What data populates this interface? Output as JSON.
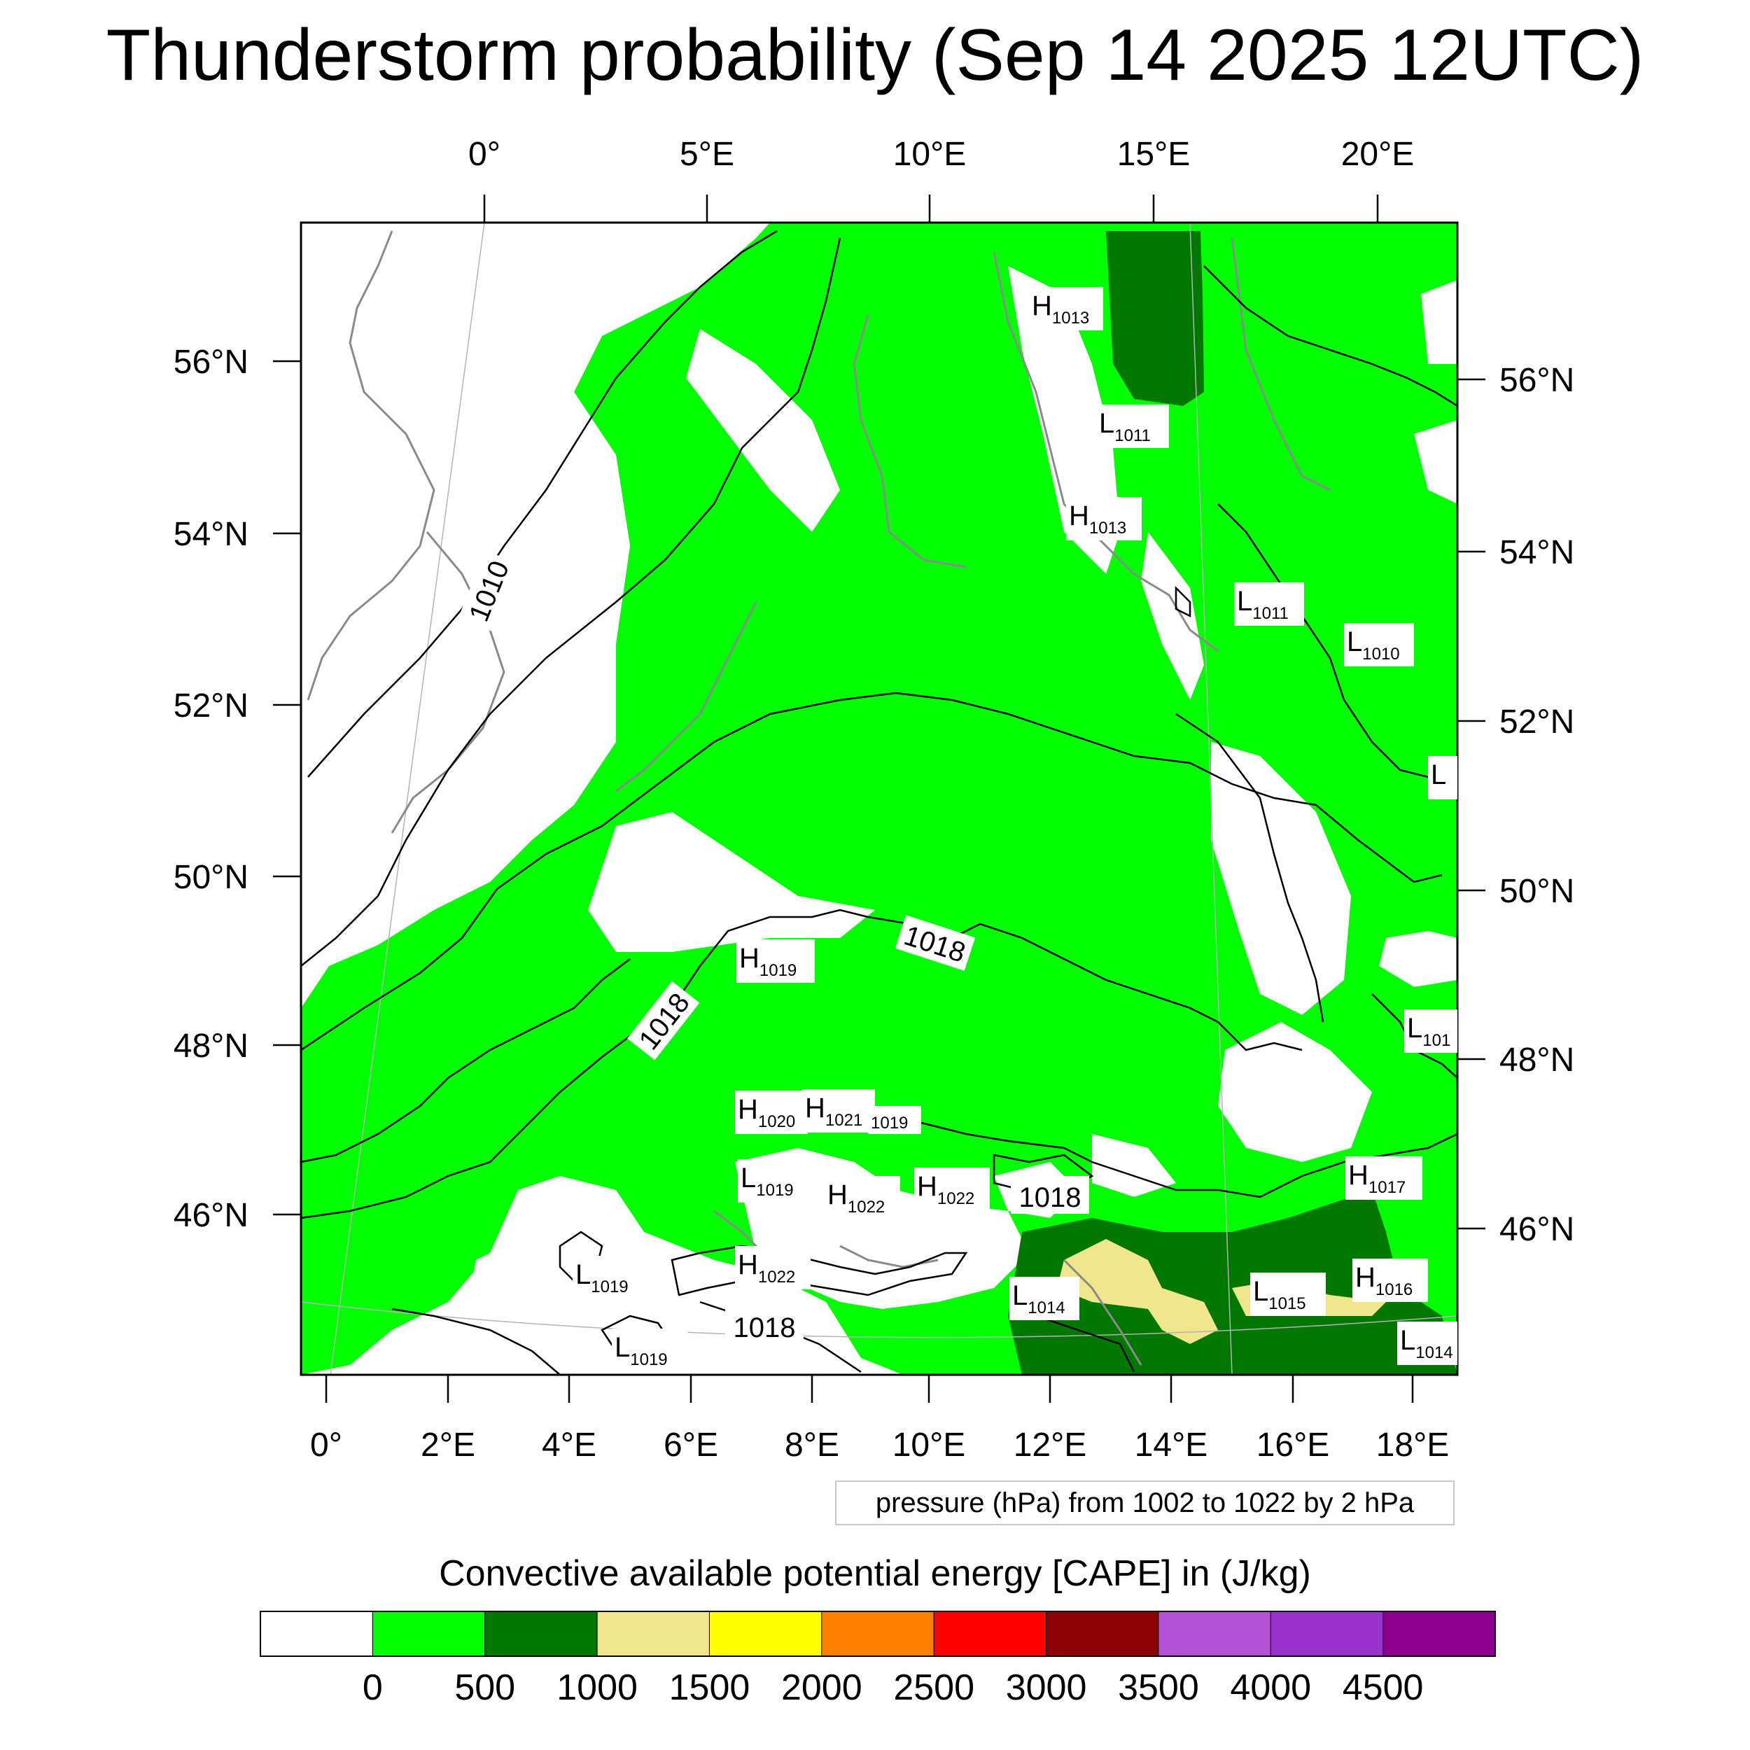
{
  "title": "Thunderstorm probability (Sep 14 2025 12UTC)",
  "top_lon_labels": [
    "0°",
    "5°E",
    "10°E",
    "15°E",
    "20°E"
  ],
  "bottom_lon_labels": [
    "0°",
    "2°E",
    "4°E",
    "6°E",
    "8°E",
    "10°E",
    "12°E",
    "14°E",
    "16°E",
    "18°E"
  ],
  "left_lat_labels": [
    "56°N",
    "54°N",
    "52°N",
    "50°N",
    "48°N",
    "46°N"
  ],
  "right_lat_labels": [
    "56°N",
    "54°N",
    "52°N",
    "50°N",
    "48°N",
    "46°N"
  ],
  "contour_info": "pressure (hPa) from 1002 to 1022 by 2 hPa",
  "contour_labels": [
    "1010",
    "1018",
    "1018",
    "1018",
    "1018"
  ],
  "pressure_centers": [
    {
      "type": "H",
      "value": "1013"
    },
    {
      "type": "L",
      "value": "1011"
    },
    {
      "type": "H",
      "value": "1013"
    },
    {
      "type": "L",
      "value": "1011"
    },
    {
      "type": "L",
      "value": "1010"
    },
    {
      "type": "L",
      "value": ""
    },
    {
      "type": "H",
      "value": "1019"
    },
    {
      "type": "L",
      "value": "101"
    },
    {
      "type": "H",
      "value": "1020"
    },
    {
      "type": "H",
      "value": "1021"
    },
    {
      "type": "",
      "value": "1019"
    },
    {
      "type": "L",
      "value": "1019"
    },
    {
      "type": "H",
      "value": "1022"
    },
    {
      "type": "H",
      "value": "1022"
    },
    {
      "type": "H",
      "value": "1017"
    },
    {
      "type": "H",
      "value": "1022"
    },
    {
      "type": "L",
      "value": "1019"
    },
    {
      "type": "L",
      "value": "1014"
    },
    {
      "type": "L",
      "value": "1015"
    },
    {
      "type": "H",
      "value": "1016"
    },
    {
      "type": "L",
      "value": "1019"
    },
    {
      "type": "L",
      "value": "1014"
    }
  ],
  "colorbar": {
    "title": "Convective available potential energy [CAPE] in (J/kg)",
    "colors": [
      "#ffffff",
      "#00ff00",
      "#007800",
      "#f0e68c",
      "#ffff00",
      "#ff8000",
      "#ff0000",
      "#8b0000",
      "#b452d6",
      "#9932cc",
      "#8b008b"
    ],
    "tick_labels": [
      "0",
      "500",
      "1000",
      "1500",
      "2000",
      "2500",
      "3000",
      "3500",
      "4000",
      "4500"
    ]
  }
}
